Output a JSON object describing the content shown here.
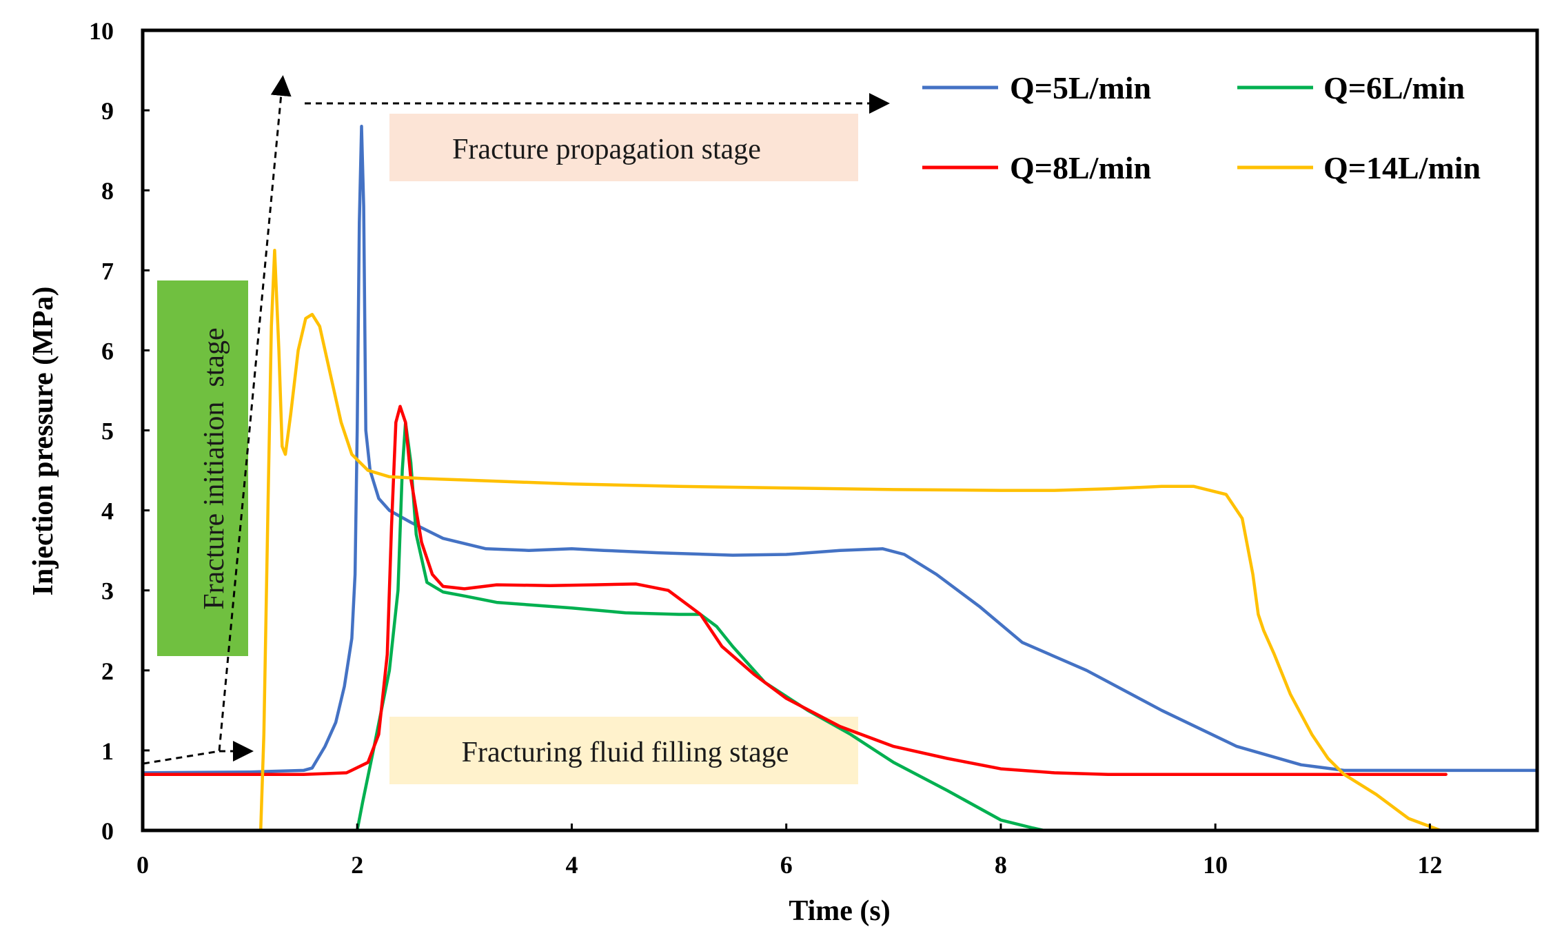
{
  "chart_data": {
    "type": "line",
    "title": "",
    "xlabel": "Time (s)",
    "ylabel": "Injection pressure (MPa)",
    "xlim": [
      0,
      13
    ],
    "ylim": [
      0,
      10
    ],
    "xticks": [
      0,
      2,
      4,
      6,
      8,
      10,
      12
    ],
    "yticks": [
      0,
      1,
      2,
      3,
      4,
      5,
      6,
      7,
      8,
      9,
      10
    ],
    "grid": false,
    "legend_position": "top-right",
    "series": [
      {
        "name": "Q=5L/min",
        "color": "#4472C4",
        "x": [
          0,
          1.0,
          1.5,
          1.58,
          1.7,
          1.8,
          1.88,
          1.95,
          1.98,
          2.0,
          2.02,
          2.04,
          2.06,
          2.08,
          2.12,
          2.2,
          2.3,
          2.5,
          2.8,
          3.2,
          3.6,
          4.0,
          4.3,
          4.8,
          5.5,
          6.0,
          6.5,
          6.9,
          7.1,
          7.4,
          7.8,
          8.2,
          8.8,
          9.5,
          10.2,
          10.8,
          11.2,
          12.0,
          13.0
        ],
        "y": [
          0.72,
          0.73,
          0.75,
          0.78,
          1.05,
          1.35,
          1.8,
          2.4,
          3.2,
          5.0,
          7.6,
          8.8,
          7.8,
          5.0,
          4.5,
          4.15,
          4.0,
          3.85,
          3.65,
          3.52,
          3.5,
          3.52,
          3.5,
          3.47,
          3.44,
          3.45,
          3.5,
          3.52,
          3.45,
          3.2,
          2.8,
          2.35,
          2.0,
          1.5,
          1.05,
          0.82,
          0.75,
          0.75,
          0.75
        ]
      },
      {
        "name": "Q=6L/min",
        "color": "#00B050",
        "x": [
          2.0,
          2.05,
          2.15,
          2.3,
          2.38,
          2.42,
          2.45,
          2.5,
          2.55,
          2.65,
          2.8,
          3.0,
          3.3,
          3.6,
          4.0,
          4.5,
          5.0,
          5.2,
          5.35,
          5.5,
          5.8,
          6.2,
          6.6,
          7.0,
          7.5,
          8.0,
          8.3,
          8.4
        ],
        "y": [
          0.0,
          0.35,
          1.0,
          2.0,
          3.0,
          4.5,
          5.1,
          4.6,
          3.7,
          3.1,
          2.98,
          2.93,
          2.85,
          2.82,
          2.78,
          2.72,
          2.7,
          2.7,
          2.55,
          2.3,
          1.85,
          1.5,
          1.2,
          0.85,
          0.5,
          0.13,
          0.03,
          0.0
        ]
      },
      {
        "name": "Q=8L/min",
        "color": "#FF0000",
        "x": [
          0,
          1.5,
          1.9,
          2.1,
          2.2,
          2.28,
          2.32,
          2.36,
          2.4,
          2.45,
          2.5,
          2.6,
          2.7,
          2.8,
          3.0,
          3.3,
          3.8,
          4.2,
          4.6,
          4.9,
          5.2,
          5.4,
          5.7,
          6.0,
          6.5,
          7.0,
          7.5,
          8.0,
          8.5,
          9.0,
          10.0,
          11.0,
          12.15
        ],
        "y": [
          0.7,
          0.7,
          0.72,
          0.85,
          1.2,
          2.2,
          3.8,
          5.1,
          5.3,
          5.1,
          4.4,
          3.6,
          3.2,
          3.05,
          3.02,
          3.07,
          3.06,
          3.07,
          3.08,
          3.0,
          2.7,
          2.3,
          1.95,
          1.65,
          1.3,
          1.05,
          0.9,
          0.77,
          0.72,
          0.7,
          0.7,
          0.7,
          0.7
        ]
      },
      {
        "name": "Q=14L/min",
        "color": "#FFC000",
        "x": [
          1.1,
          1.13,
          1.17,
          1.2,
          1.23,
          1.27,
          1.3,
          1.33,
          1.38,
          1.45,
          1.52,
          1.58,
          1.65,
          1.75,
          1.85,
          1.95,
          2.1,
          2.3,
          2.6,
          3.0,
          4.0,
          5.0,
          6.0,
          7.0,
          8.0,
          8.5,
          9.0,
          9.5,
          9.8,
          10.1,
          10.25,
          10.35,
          10.4,
          10.45,
          10.55,
          10.7,
          10.9,
          11.05,
          11.2,
          11.5,
          11.8,
          12.1
        ],
        "y": [
          0.0,
          1.2,
          4.2,
          6.3,
          7.25,
          6.0,
          4.8,
          4.7,
          5.2,
          6.0,
          6.4,
          6.45,
          6.3,
          5.7,
          5.1,
          4.7,
          4.5,
          4.42,
          4.4,
          4.38,
          4.33,
          4.3,
          4.28,
          4.26,
          4.25,
          4.25,
          4.27,
          4.3,
          4.3,
          4.2,
          3.9,
          3.2,
          2.7,
          2.5,
          2.2,
          1.7,
          1.2,
          0.9,
          0.7,
          0.45,
          0.15,
          0.0
        ]
      }
    ],
    "annotations": [
      {
        "text": "Fracture propagation stage",
        "background": "#FCE4D6"
      },
      {
        "text": "Fracturing fluid filling stage",
        "background": "#FFF2CC"
      },
      {
        "text": "Fracture initiation  stage",
        "background": "#70C040",
        "orientation": "vertical"
      }
    ]
  }
}
